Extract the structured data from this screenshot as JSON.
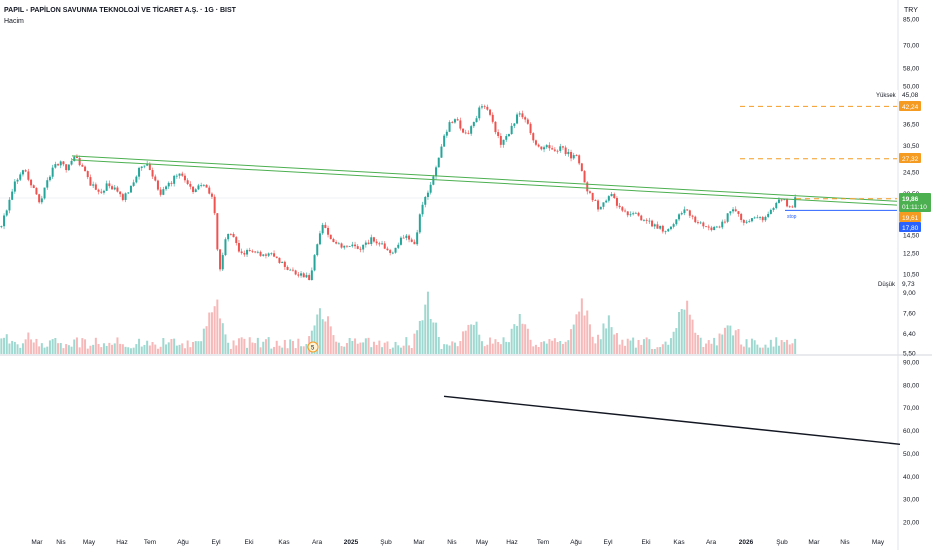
{
  "header": {
    "title": "PAPIL - PAPİLON SAVUNMA TEKNOLOJİ VE TİCARET A.Ş. · 1G · BIST",
    "indicator": "Hacim",
    "currency": "TRY"
  },
  "colors": {
    "up": "#26a69a",
    "down": "#ef5350",
    "vol_up": "#9fd8d0",
    "vol_down": "#f6b8b8",
    "channel": "#4caf50",
    "orange": "#f59b22",
    "blue": "#2962ff",
    "green_badge": "#4caf50",
    "black_line": "#131722"
  },
  "chart_data": [
    {
      "type": "candlestick",
      "title": "",
      "price_axis_ticks": [
        "85,00",
        "70,00",
        "58,00",
        "50,00",
        "36,50",
        "30,50",
        "24,50",
        "20,50",
        "14,50",
        "12,50",
        "10,50",
        "9,00",
        "7,60",
        "6,40",
        "5,50"
      ],
      "time_axis_labels": [
        "Mar",
        "Nis",
        "May",
        "Haz",
        "Tem",
        "Ağu",
        "Eyl",
        "Eki",
        "Kas",
        "Ara",
        "2025",
        "Şub",
        "Mar",
        "Nis",
        "May",
        "Haz",
        "Tem",
        "Ağu",
        "Eyl",
        "Eki",
        "Kas",
        "Ara",
        "2026",
        "Şub",
        "Mar",
        "Nis",
        "May"
      ],
      "price_path": [
        {
          "d": 0,
          "p": 15.5
        },
        {
          "d": 8,
          "p": 19.5
        },
        {
          "d": 15,
          "p": 23
        },
        {
          "d": 22,
          "p": 25.5
        },
        {
          "d": 30,
          "p": 22
        },
        {
          "d": 38,
          "p": 19
        },
        {
          "d": 45,
          "p": 22
        },
        {
          "d": 52,
          "p": 25.5
        },
        {
          "d": 60,
          "p": 26.5
        },
        {
          "d": 66,
          "p": 25
        },
        {
          "d": 74,
          "p": 28
        },
        {
          "d": 82,
          "p": 25
        },
        {
          "d": 90,
          "p": 22
        },
        {
          "d": 98,
          "p": 20.5
        },
        {
          "d": 106,
          "p": 22
        },
        {
          "d": 114,
          "p": 21
        },
        {
          "d": 122,
          "p": 19.5
        },
        {
          "d": 130,
          "p": 22
        },
        {
          "d": 138,
          "p": 25
        },
        {
          "d": 146,
          "p": 26
        },
        {
          "d": 152,
          "p": 23
        },
        {
          "d": 160,
          "p": 20.5
        },
        {
          "d": 168,
          "p": 22
        },
        {
          "d": 176,
          "p": 24
        },
        {
          "d": 184,
          "p": 23
        },
        {
          "d": 192,
          "p": 21
        },
        {
          "d": 200,
          "p": 22
        },
        {
          "d": 206,
          "p": 21.5
        },
        {
          "d": 212,
          "p": 19
        },
        {
          "d": 216,
          "p": 13
        },
        {
          "d": 219,
          "p": 10.5
        },
        {
          "d": 223,
          "p": 13.5
        },
        {
          "d": 228,
          "p": 15
        },
        {
          "d": 234,
          "p": 13.5
        },
        {
          "d": 240,
          "p": 12.5
        },
        {
          "d": 250,
          "p": 12.8
        },
        {
          "d": 260,
          "p": 12.2
        },
        {
          "d": 270,
          "p": 12.4
        },
        {
          "d": 280,
          "p": 11.5
        },
        {
          "d": 290,
          "p": 10.8
        },
        {
          "d": 300,
          "p": 10.5
        },
        {
          "d": 308,
          "p": 10.2
        },
        {
          "d": 312,
          "p": 11.5
        },
        {
          "d": 318,
          "p": 14.5
        },
        {
          "d": 322,
          "p": 16
        },
        {
          "d": 330,
          "p": 14
        },
        {
          "d": 340,
          "p": 13
        },
        {
          "d": 350,
          "p": 13.5
        },
        {
          "d": 360,
          "p": 13
        },
        {
          "d": 370,
          "p": 14
        },
        {
          "d": 380,
          "p": 13.5
        },
        {
          "d": 388,
          "p": 12.5
        },
        {
          "d": 395,
          "p": 13
        },
        {
          "d": 400,
          "p": 14.5
        },
        {
          "d": 408,
          "p": 14
        },
        {
          "d": 414,
          "p": 13.5
        },
        {
          "d": 420,
          "p": 18
        },
        {
          "d": 426,
          "p": 20.5
        },
        {
          "d": 432,
          "p": 24
        },
        {
          "d": 438,
          "p": 28
        },
        {
          "d": 444,
          "p": 34
        },
        {
          "d": 448,
          "p": 36.5
        },
        {
          "d": 454,
          "p": 38
        },
        {
          "d": 460,
          "p": 35
        },
        {
          "d": 466,
          "p": 33
        },
        {
          "d": 472,
          "p": 37
        },
        {
          "d": 478,
          "p": 41
        },
        {
          "d": 482,
          "p": 43
        },
        {
          "d": 488,
          "p": 40
        },
        {
          "d": 494,
          "p": 34
        },
        {
          "d": 500,
          "p": 30.5
        },
        {
          "d": 506,
          "p": 33
        },
        {
          "d": 512,
          "p": 36.5
        },
        {
          "d": 518,
          "p": 40
        },
        {
          "d": 522,
          "p": 38
        },
        {
          "d": 528,
          "p": 35
        },
        {
          "d": 534,
          "p": 31
        },
        {
          "d": 540,
          "p": 29
        },
        {
          "d": 546,
          "p": 30.5
        },
        {
          "d": 552,
          "p": 28.5
        },
        {
          "d": 558,
          "p": 30
        },
        {
          "d": 564,
          "p": 29
        },
        {
          "d": 570,
          "p": 28
        },
        {
          "d": 575,
          "p": 28.5
        },
        {
          "d": 580,
          "p": 24.5
        },
        {
          "d": 586,
          "p": 21
        },
        {
          "d": 592,
          "p": 19.5
        },
        {
          "d": 598,
          "p": 17.8
        },
        {
          "d": 604,
          "p": 19
        },
        {
          "d": 610,
          "p": 20.8
        },
        {
          "d": 616,
          "p": 18.5
        },
        {
          "d": 622,
          "p": 17.5
        },
        {
          "d": 628,
          "p": 16.8
        },
        {
          "d": 634,
          "p": 17.5
        },
        {
          "d": 640,
          "p": 16.5
        },
        {
          "d": 648,
          "p": 16
        },
        {
          "d": 656,
          "p": 15.5
        },
        {
          "d": 664,
          "p": 15
        },
        {
          "d": 672,
          "p": 15.8
        },
        {
          "d": 678,
          "p": 17.2
        },
        {
          "d": 684,
          "p": 18.5
        },
        {
          "d": 690,
          "p": 17
        },
        {
          "d": 696,
          "p": 16
        },
        {
          "d": 704,
          "p": 15.5
        },
        {
          "d": 712,
          "p": 15.2
        },
        {
          "d": 720,
          "p": 15.8
        },
        {
          "d": 728,
          "p": 17.5
        },
        {
          "d": 734,
          "p": 18
        },
        {
          "d": 740,
          "p": 16.5
        },
        {
          "d": 746,
          "p": 16
        },
        {
          "d": 752,
          "p": 16.5
        },
        {
          "d": 758,
          "p": 17
        },
        {
          "d": 764,
          "p": 16.5
        },
        {
          "d": 770,
          "p": 18
        },
        {
          "d": 776,
          "p": 19.2
        },
        {
          "d": 782,
          "p": 19.5
        },
        {
          "d": 788,
          "p": 18.2
        },
        {
          "d": 792,
          "p": 18.8
        },
        {
          "d": 796,
          "p": 19.86
        }
      ],
      "volume_spikes": [
        {
          "d": 213,
          "h": 0.9
        },
        {
          "d": 320,
          "h": 0.8
        },
        {
          "d": 426,
          "h": 0.9
        },
        {
          "d": 470,
          "h": 0.55
        },
        {
          "d": 518,
          "h": 0.6
        },
        {
          "d": 580,
          "h": 1.0
        },
        {
          "d": 606,
          "h": 0.5
        },
        {
          "d": 684,
          "h": 1.25
        },
        {
          "d": 728,
          "h": 0.5
        }
      ],
      "volume_marker": "5",
      "annotations": {
        "yuksek_label": "Yüksek",
        "yuksek_value": "45,08",
        "dusuk_label": "Düşük",
        "dusuk_value": "9,73",
        "orange_level_1": "42,24",
        "orange_level_2": "27,32",
        "current_price": "19,86",
        "countdown": "01:11:10",
        "orange_level_3": "19,61",
        "blue_level": "17,80",
        "stop_label": "stop"
      },
      "channel_lines": [
        {
          "from": {
            "d": 72,
            "p": 28
          },
          "to": {
            "d": 932,
            "p": 19.2
          }
        },
        {
          "from": {
            "d": 72,
            "p": 27.1
          },
          "to": {
            "d": 932,
            "p": 18.6
          }
        }
      ],
      "horizontal_levels": [
        {
          "p": 42.24,
          "style": "dashed",
          "color_key": "orange",
          "from_d": 740
        },
        {
          "p": 27.32,
          "style": "dashed",
          "color_key": "orange",
          "from_d": 740
        },
        {
          "p": 19.61,
          "style": "dashed",
          "color_key": "orange",
          "from_d": 796
        },
        {
          "p": 17.8,
          "style": "solid",
          "color_key": "blue",
          "from_d": 785
        }
      ]
    },
    {
      "type": "line",
      "title": "",
      "y_axis_ticks": [
        "90,00",
        "80,00",
        "70,00",
        "60,00",
        "50,00",
        "40,00",
        "30,00",
        "20,00"
      ],
      "ylim": [
        15,
        92
      ],
      "line": {
        "from": {
          "d": 444,
          "v": 75
        },
        "to": {
          "d": 900,
          "v": 54
        }
      }
    }
  ]
}
